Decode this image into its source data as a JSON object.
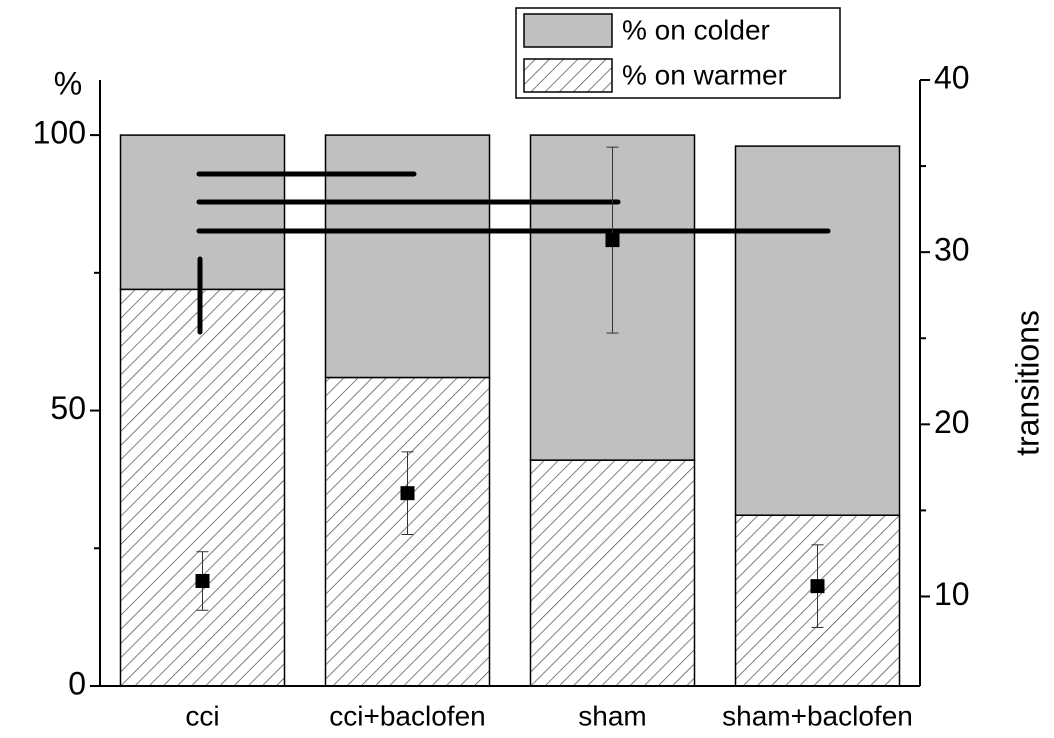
{
  "chart_data": {
    "type": "stacked_bar",
    "ylabel": "%",
    "y2label": "transitions",
    "categories": [
      "cci",
      "cci+baclofen",
      "sham",
      "sham+baclofen"
    ],
    "series": [
      {
        "name": "% on colder",
        "color": "#c0c0c0",
        "values": [
          28,
          44,
          59,
          67
        ]
      },
      {
        "name": "% on warmer",
        "color": "hatch",
        "values": [
          72,
          56,
          41,
          31
        ]
      }
    ],
    "points": {
      "axis": "y2",
      "color": "#000000",
      "values": [
        10.9,
        16.0,
        30.7,
        10.6
      ],
      "errors": [
        1.7,
        2.4,
        5.4,
        2.4
      ]
    },
    "ylim": [
      0,
      110
    ],
    "yticks": [
      0,
      50,
      100
    ],
    "yminorticks": [
      25,
      75
    ],
    "y2lim": [
      4.8,
      40
    ],
    "y2ticks": [
      10,
      20,
      30,
      40
    ],
    "y2minorticks": [
      15,
      25,
      35
    ],
    "legend": "top-right"
  }
}
